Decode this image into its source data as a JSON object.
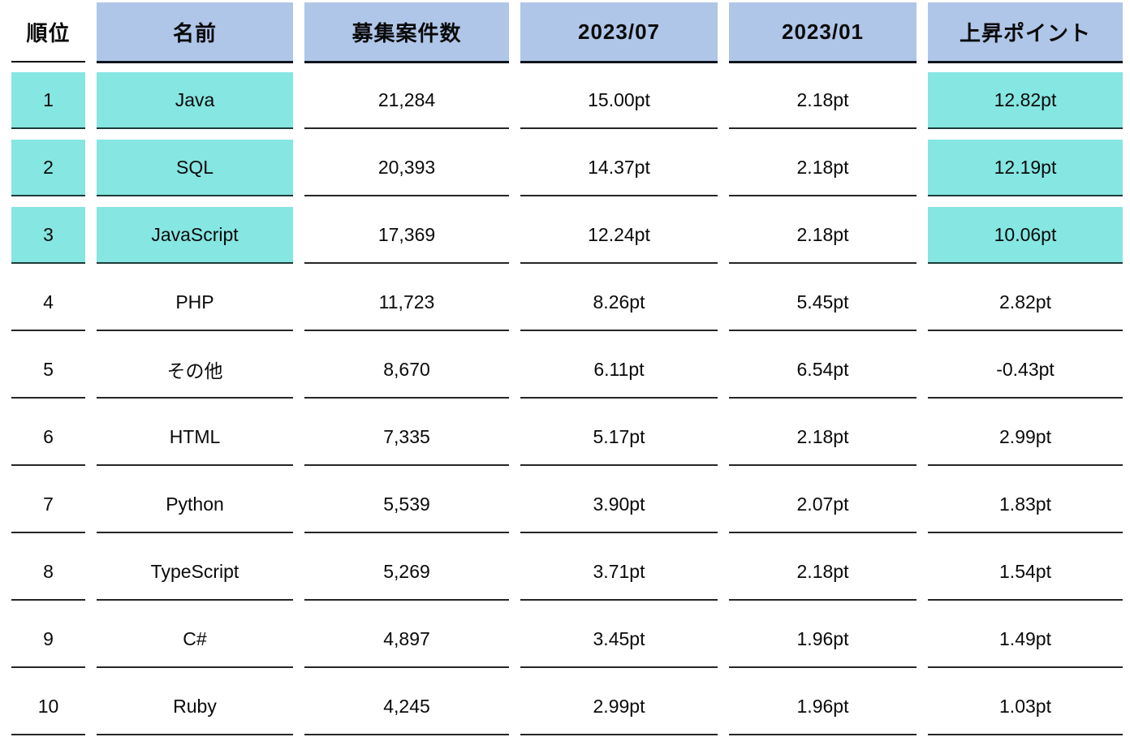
{
  "colors": {
    "header_bg": "#afc6e8",
    "highlight_bg": "#85e6e2",
    "row_border": "#262626",
    "header_border": "#10151c",
    "text": "#0a0a0a",
    "background": "#ffffff"
  },
  "chart_data": {
    "type": "table",
    "title": "",
    "legend": "none",
    "grid": "horizontal-borders-only",
    "columns": [
      "順位",
      "名前",
      "募集案件数",
      "2023/07",
      "2023/01",
      "上昇ポイント"
    ],
    "highlight_note": "rows ranked 1-3 have cyan highlight on rank, name and rise-point cells",
    "rows": [
      {
        "rank": "1",
        "name": "Java",
        "cases": "21,284",
        "pt_2023_07": "15.00pt",
        "pt_2023_01": "2.18pt",
        "rise": "12.82pt",
        "highlight": true
      },
      {
        "rank": "2",
        "name": "SQL",
        "cases": "20,393",
        "pt_2023_07": "14.37pt",
        "pt_2023_01": "2.18pt",
        "rise": "12.19pt",
        "highlight": true
      },
      {
        "rank": "3",
        "name": "JavaScript",
        "cases": "17,369",
        "pt_2023_07": "12.24pt",
        "pt_2023_01": "2.18pt",
        "rise": "10.06pt",
        "highlight": true
      },
      {
        "rank": "4",
        "name": "PHP",
        "cases": "11,723",
        "pt_2023_07": "8.26pt",
        "pt_2023_01": "5.45pt",
        "rise": "2.82pt",
        "highlight": false
      },
      {
        "rank": "5",
        "name": "その他",
        "cases": "8,670",
        "pt_2023_07": "6.11pt",
        "pt_2023_01": "6.54pt",
        "rise": "-0.43pt",
        "highlight": false
      },
      {
        "rank": "6",
        "name": "HTML",
        "cases": "7,335",
        "pt_2023_07": "5.17pt",
        "pt_2023_01": "2.18pt",
        "rise": "2.99pt",
        "highlight": false
      },
      {
        "rank": "7",
        "name": "Python",
        "cases": "5,539",
        "pt_2023_07": "3.90pt",
        "pt_2023_01": "2.07pt",
        "rise": "1.83pt",
        "highlight": false
      },
      {
        "rank": "8",
        "name": "TypeScript",
        "cases": "5,269",
        "pt_2023_07": "3.71pt",
        "pt_2023_01": "2.18pt",
        "rise": "1.54pt",
        "highlight": false
      },
      {
        "rank": "9",
        "name": "C#",
        "cases": "4,897",
        "pt_2023_07": "3.45pt",
        "pt_2023_01": "1.96pt",
        "rise": "1.49pt",
        "highlight": false
      },
      {
        "rank": "10",
        "name": "Ruby",
        "cases": "4,245",
        "pt_2023_07": "2.99pt",
        "pt_2023_01": "1.96pt",
        "rise": "1.03pt",
        "highlight": false
      }
    ]
  }
}
